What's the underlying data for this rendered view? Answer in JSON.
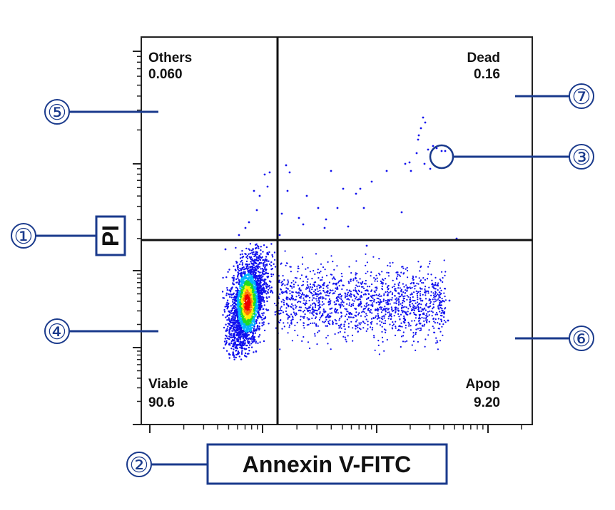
{
  "chart_data": {
    "type": "scatter",
    "title": "",
    "xlabel": "Annexin V-FITC",
    "ylabel": "PI",
    "x_scale": "log",
    "y_scale": "log",
    "quadrants": [
      {
        "position": "top-left",
        "name": "Others",
        "value": "0.060"
      },
      {
        "position": "top-right",
        "name": "Dead",
        "value": "0.16"
      },
      {
        "position": "bottom-left",
        "name": "Viable",
        "value": "90.6"
      },
      {
        "position": "bottom-right",
        "name": "Apop",
        "value": "9.20"
      }
    ],
    "callouts": [
      {
        "number": "①",
        "target": "y-axis label"
      },
      {
        "number": "②",
        "target": "x-axis label"
      },
      {
        "number": "③",
        "target": "single event (dot)"
      },
      {
        "number": "④",
        "target": "Viable quadrant"
      },
      {
        "number": "⑤",
        "target": "Others quadrant"
      },
      {
        "number": "⑥",
        "target": "Apop quadrant"
      },
      {
        "number": "⑦",
        "target": "Dead quadrant"
      }
    ],
    "density_colors": [
      "#1010ee",
      "#00b4ff",
      "#22dd22",
      "#ffee00",
      "#ff7700",
      "#ee0000"
    ],
    "accent_color": "#1a3a8c"
  }
}
